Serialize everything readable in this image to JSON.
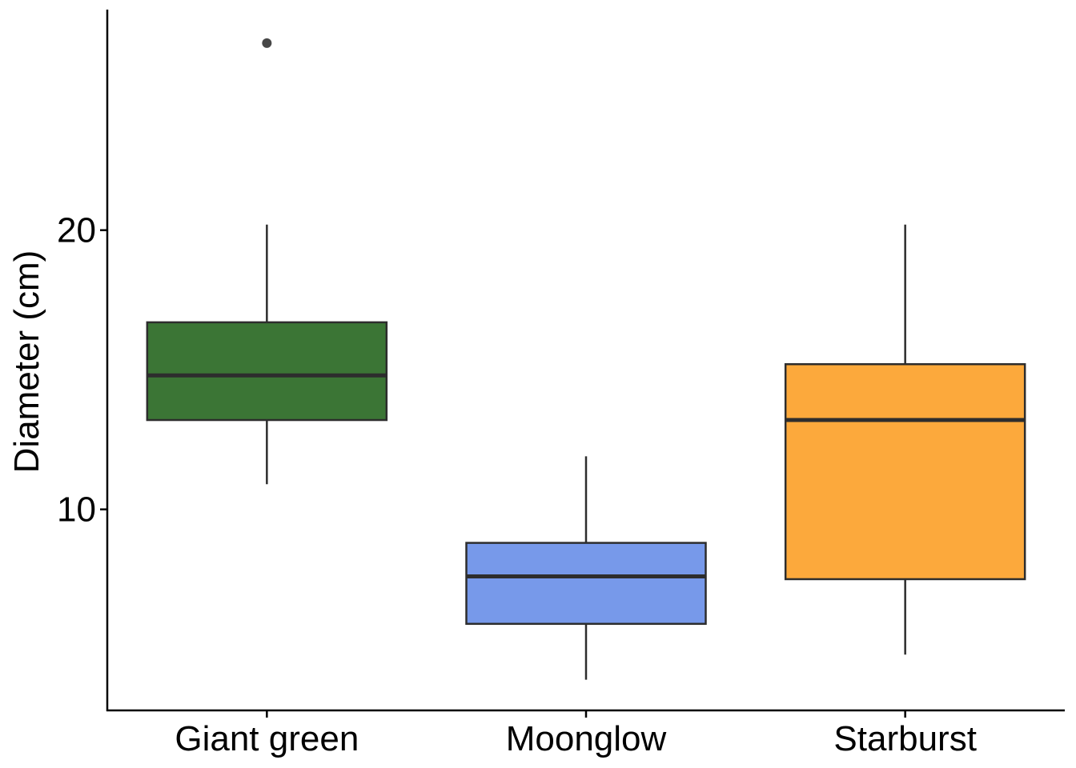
{
  "chart_data": {
    "type": "box",
    "title": "",
    "xlabel": "",
    "ylabel": "Diameter (cm)",
    "ylim": [
      2.8,
      27.9
    ],
    "yticks": [
      10,
      20
    ],
    "grid": false,
    "legend": "none",
    "categories": [
      "Giant green",
      "Moonglow",
      "Starburst"
    ],
    "boxes": [
      {
        "category": "Giant green",
        "whisker_low": 10.9,
        "q1": 13.2,
        "median": 14.8,
        "q3": 16.7,
        "whisker_high": 20.2,
        "outliers": [
          26.7
        ],
        "color": "#3b7535"
      },
      {
        "category": "Moonglow",
        "whisker_low": 3.9,
        "q1": 5.9,
        "median": 7.6,
        "q3": 8.8,
        "whisker_high": 11.9,
        "outliers": [],
        "color": "#7799ea"
      },
      {
        "category": "Starburst",
        "whisker_low": 4.8,
        "q1": 7.5,
        "median": 13.2,
        "q3": 15.2,
        "whisker_high": 20.2,
        "outliers": [],
        "color": "#fca93c"
      }
    ],
    "colors": {
      "axis": "#000000",
      "box_outline": "#2d2d2d",
      "outlier": "#474747"
    }
  }
}
